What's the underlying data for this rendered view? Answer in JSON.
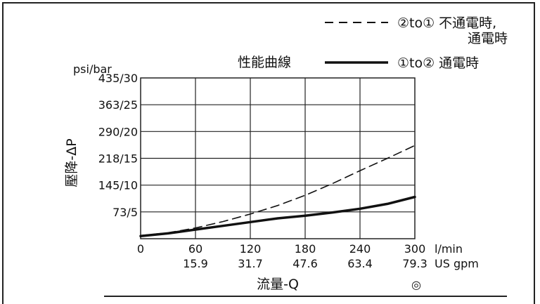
{
  "chart_data": {
    "type": "line",
    "y_unit_label": "psi/bar",
    "ylabel": "壓降-ΔP",
    "xlabel": "流量-Q",
    "x_unit_label": "l/min",
    "x2_unit_label": "US gpm",
    "x_ticks": [
      0,
      60,
      120,
      180,
      240,
      300
    ],
    "x_tick_labels": [
      "0",
      "60",
      "120",
      "180",
      "240",
      "300"
    ],
    "x2_tick_labels": [
      "",
      "15.9",
      "31.7",
      "47.6",
      "63.4",
      "79.3"
    ],
    "xlim": [
      0,
      300
    ],
    "y_ticks": [
      5,
      10,
      15,
      20,
      25,
      30
    ],
    "y_tick_labels": [
      "73/5",
      "145/10",
      "218/15",
      "290/20",
      "363/25",
      "435/30"
    ],
    "ylim": [
      0,
      30
    ],
    "grid": true,
    "legend_title": "性能曲線",
    "series": [
      {
        "style": "dashed",
        "legend_line1": "②to① 不通電時,",
        "legend_line2": "通電時",
        "x": [
          0,
          30,
          60,
          90,
          120,
          150,
          180,
          210,
          240,
          270,
          300
        ],
        "y": [
          0.6,
          1.1,
          2.0,
          3.2,
          4.6,
          6.2,
          8.1,
          10.3,
          12.7,
          15.0,
          17.4
        ]
      },
      {
        "style": "solid",
        "legend_line1": "①to② 通電時",
        "x": [
          0,
          30,
          60,
          90,
          120,
          150,
          180,
          210,
          240,
          270,
          300
        ],
        "y": [
          0.5,
          1.0,
          1.7,
          2.4,
          3.1,
          3.8,
          4.3,
          4.9,
          5.6,
          6.5,
          7.8
        ]
      }
    ],
    "colors": {
      "line": "#111111",
      "grid": "#222222"
    }
  },
  "footer_symbol": "◎"
}
